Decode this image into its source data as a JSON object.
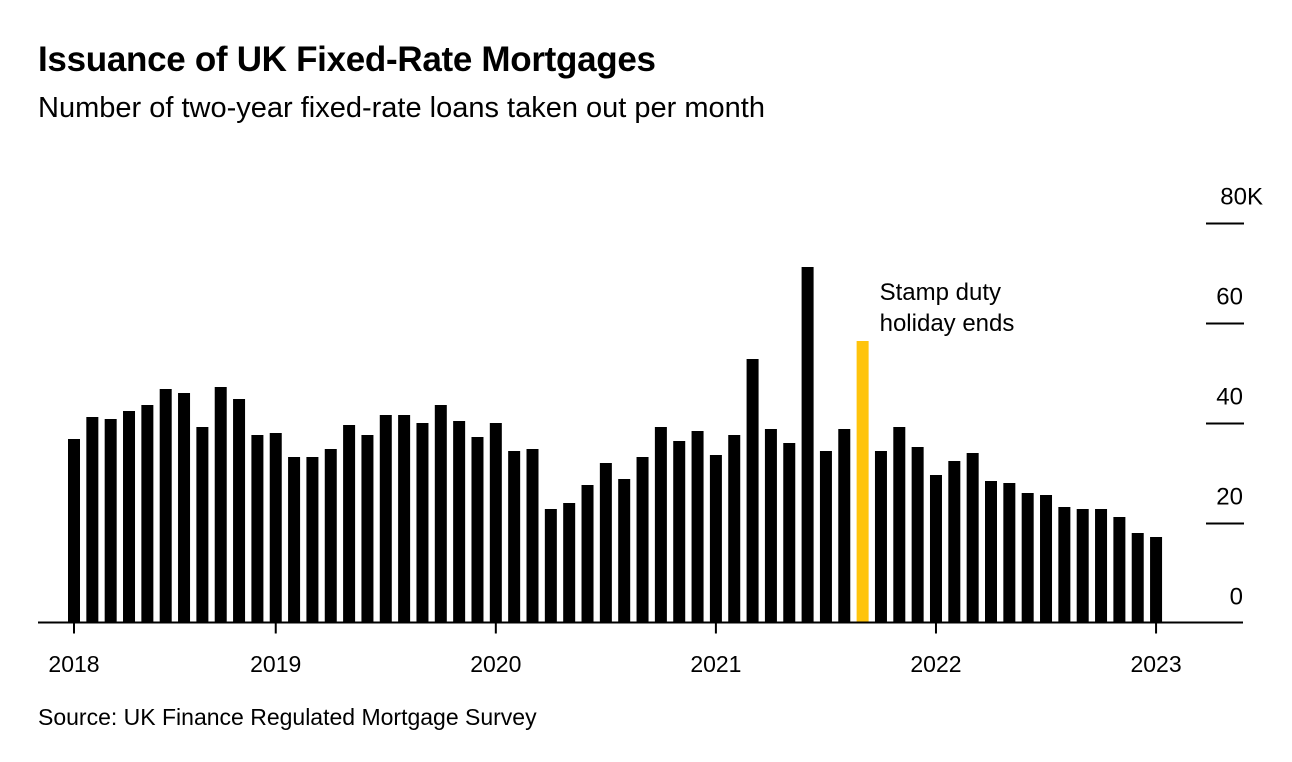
{
  "title": "Issuance of UK Fixed-Rate Mortgages",
  "subtitle": "Number of two-year fixed-rate loans taken out per month",
  "source": "Source: UK Finance Regulated Mortgage Survey",
  "colors": {
    "bar": "#000000",
    "highlight": "#FFC40C"
  },
  "chart_data": {
    "type": "bar",
    "title": "Issuance of UK Fixed-Rate Mortgages",
    "subtitle": "Number of two-year fixed-rate loans taken out per month",
    "ylabel": "",
    "xlabel": "",
    "unit": "thousands",
    "ylim": [
      0,
      80
    ],
    "yticks": [
      0,
      20,
      40,
      60,
      80
    ],
    "ytick_labels": [
      "0",
      "20",
      "40",
      "60",
      "80K"
    ],
    "y_axis_side": "right",
    "grid": false,
    "xticks": [
      {
        "label": "2018",
        "at": "2018-02"
      },
      {
        "label": "2019",
        "at": "2019-01"
      },
      {
        "label": "2020",
        "at": "2020-01"
      },
      {
        "label": "2021",
        "at": "2021-01"
      },
      {
        "label": "2022",
        "at": "2022-01"
      },
      {
        "label": "2023",
        "at": "2023-01"
      }
    ],
    "categories": [
      "2018-02",
      "2018-03",
      "2018-04",
      "2018-05",
      "2018-06",
      "2018-07",
      "2018-08",
      "2018-09",
      "2018-10",
      "2018-11",
      "2018-12",
      "2019-01",
      "2019-02",
      "2019-03",
      "2019-04",
      "2019-05",
      "2019-06",
      "2019-07",
      "2019-08",
      "2019-09",
      "2019-10",
      "2019-11",
      "2019-12",
      "2020-01",
      "2020-02",
      "2020-03",
      "2020-04",
      "2020-05",
      "2020-06",
      "2020-07",
      "2020-08",
      "2020-09",
      "2020-10",
      "2020-11",
      "2020-12",
      "2021-01",
      "2021-02",
      "2021-03",
      "2021-04",
      "2021-05",
      "2021-06",
      "2021-07",
      "2021-08",
      "2021-09",
      "2021-10",
      "2021-11",
      "2021-12",
      "2022-01",
      "2022-02",
      "2022-03",
      "2022-04",
      "2022-05",
      "2022-06",
      "2022-07",
      "2022-08",
      "2022-09",
      "2022-10",
      "2022-11",
      "2022-12",
      "2023-01"
    ],
    "values": [
      36.7,
      41.1,
      40.7,
      42.3,
      43.5,
      46.7,
      45.9,
      39.1,
      47.1,
      44.7,
      37.5,
      37.9,
      33.1,
      33.1,
      34.7,
      39.5,
      37.5,
      41.5,
      41.5,
      39.9,
      43.5,
      40.3,
      37.1,
      39.9,
      34.3,
      34.7,
      22.7,
      23.9,
      27.5,
      31.9,
      28.7,
      33.1,
      39.1,
      36.3,
      38.3,
      33.5,
      37.5,
      52.7,
      38.7,
      35.9,
      71.1,
      34.3,
      38.7,
      56.3,
      34.3,
      39.1,
      35.1,
      29.5,
      32.3,
      33.9,
      28.3,
      27.9,
      25.9,
      25.5,
      23.1,
      22.7,
      22.7,
      21.1,
      17.9,
      17.1
    ],
    "highlight": {
      "category": "2021-09",
      "color": "#FFC40C"
    },
    "annotations": [
      {
        "category": "2021-09",
        "lines": [
          "Stamp duty",
          "holiday ends"
        ]
      }
    ]
  }
}
